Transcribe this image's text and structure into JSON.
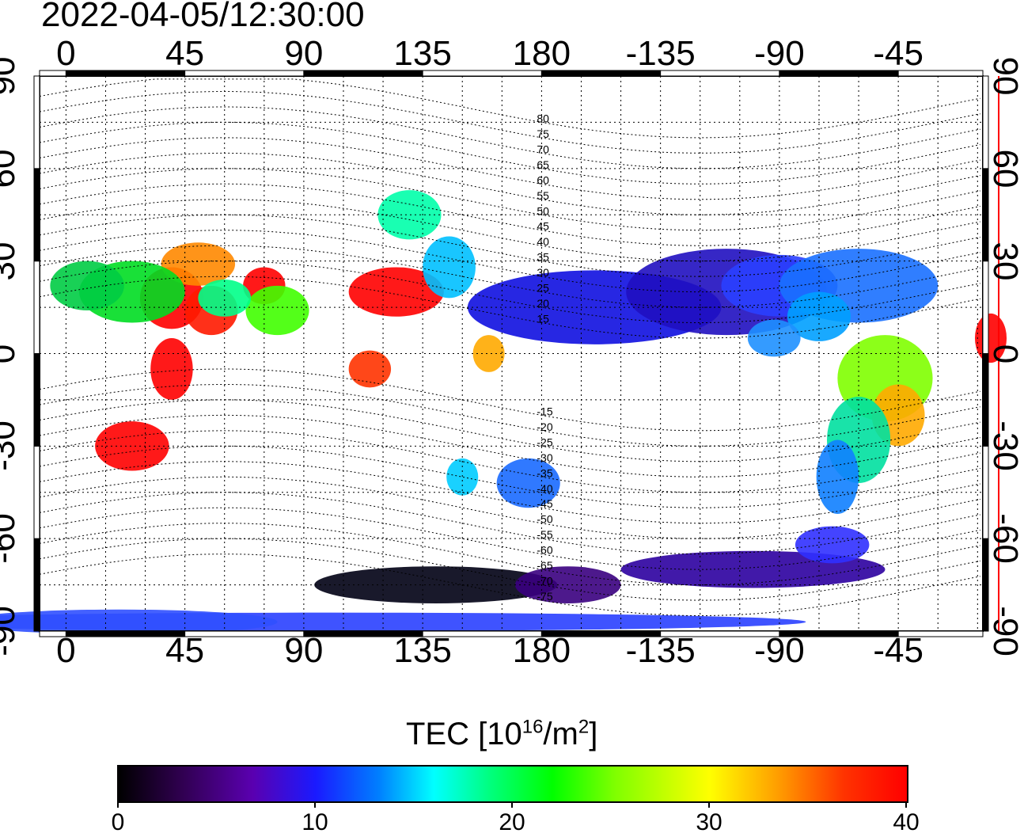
{
  "timestamp": "2022-04-05/12:30:00",
  "map": {
    "longitude_ticks": [
      "0",
      "45",
      "90",
      "135",
      "180",
      "-135",
      "-90",
      "-45"
    ],
    "latitude_ticks": [
      "90",
      "60",
      "30",
      "0",
      "-30",
      "-60",
      "-90"
    ],
    "lon_range": [
      -10,
      347
    ],
    "lat_range": [
      -90,
      90
    ],
    "grid": "dotted",
    "marker_longitude": -7,
    "marker_color": "#ff0000",
    "dip_latitude_labels": [
      "80",
      "75",
      "70",
      "65",
      "60",
      "55",
      "50",
      "45",
      "40",
      "35",
      "30",
      "25",
      "20",
      "15",
      "-15",
      "-20",
      "-25",
      "-30",
      "-35",
      "-40",
      "-45",
      "-50",
      "-55",
      "-60",
      "-65",
      "-70",
      "-75"
    ]
  },
  "colorbar": {
    "title_prefix": "TEC  [10",
    "title_exp1": "16",
    "title_mid": "/m",
    "title_exp2": "2",
    "title_suffix": "]",
    "ticks": [
      "0",
      "10",
      "20",
      "30",
      "40"
    ],
    "range": [
      0,
      40
    ],
    "colors": [
      "#000000",
      "#5a00b0",
      "#1a1aff",
      "#00ffff",
      "#00ff00",
      "#ffff00",
      "#ff0000"
    ]
  }
}
